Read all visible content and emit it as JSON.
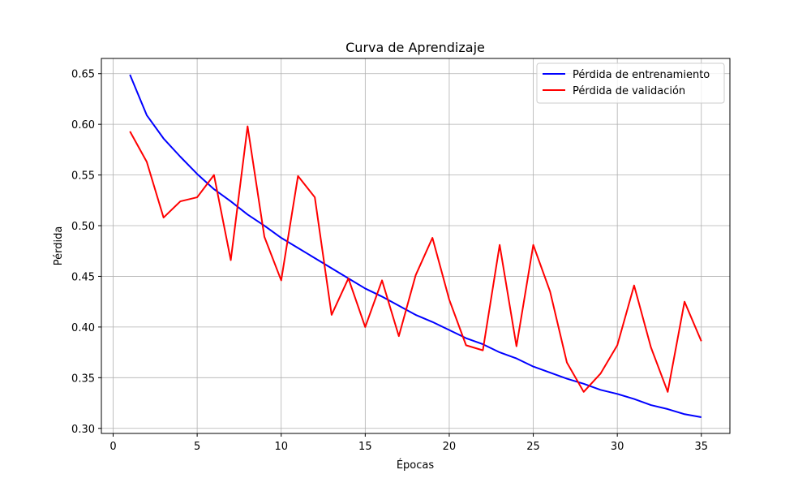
{
  "chart_data": {
    "type": "line",
    "title": "Curva de Aprendizaje",
    "xlabel": "Épocas",
    "ylabel": "Pérdida",
    "xlim": [
      -0.7,
      36.7
    ],
    "ylim": [
      0.295,
      0.665
    ],
    "xticks": [
      0,
      5,
      10,
      15,
      20,
      25,
      30,
      35
    ],
    "yticks": [
      0.3,
      0.35,
      0.4,
      0.45,
      0.5,
      0.55,
      0.6,
      0.65
    ],
    "ytick_labels": [
      "0.30",
      "0.35",
      "0.40",
      "0.45",
      "0.50",
      "0.55",
      "0.60",
      "0.65"
    ],
    "grid": true,
    "legend_position": "top-right",
    "x": [
      1,
      2,
      3,
      4,
      5,
      6,
      7,
      8,
      9,
      10,
      11,
      12,
      13,
      14,
      15,
      16,
      17,
      18,
      19,
      20,
      21,
      22,
      23,
      24,
      25,
      26,
      27,
      28,
      29,
      30,
      31,
      32,
      33,
      34,
      35
    ],
    "series": [
      {
        "name": "Pérdida de entrenamiento",
        "color": "#0000ff",
        "values": [
          0.649,
          0.609,
          0.586,
          0.568,
          0.551,
          0.536,
          0.524,
          0.511,
          0.5,
          0.488,
          0.478,
          0.468,
          0.458,
          0.448,
          0.438,
          0.43,
          0.421,
          0.412,
          0.405,
          0.397,
          0.389,
          0.383,
          0.375,
          0.369,
          0.361,
          0.355,
          0.349,
          0.344,
          0.338,
          0.334,
          0.329,
          0.323,
          0.319,
          0.314,
          0.311
        ]
      },
      {
        "name": "Pérdida de validación",
        "color": "#ff0000",
        "values": [
          0.593,
          0.563,
          0.508,
          0.524,
          0.528,
          0.55,
          0.466,
          0.598,
          0.489,
          0.446,
          0.549,
          0.528,
          0.412,
          0.448,
          0.4,
          0.446,
          0.391,
          0.451,
          0.488,
          0.427,
          0.382,
          0.377,
          0.481,
          0.381,
          0.481,
          0.435,
          0.365,
          0.336,
          0.354,
          0.382,
          0.441,
          0.38,
          0.336,
          0.425,
          0.386
        ]
      }
    ]
  }
}
